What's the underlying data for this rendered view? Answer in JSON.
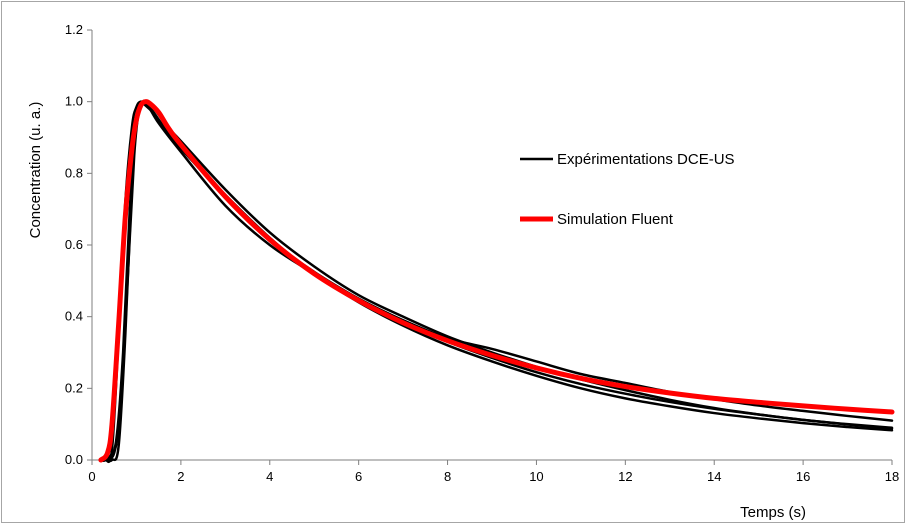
{
  "chart_data": {
    "type": "line",
    "title": "",
    "xlabel": "Temps (s)",
    "ylabel": "Concentration (u. a.)",
    "xlim": [
      0,
      18
    ],
    "ylim": [
      0,
      1.2
    ],
    "xticks": [
      "0",
      "2",
      "4",
      "6",
      "8",
      "10",
      "12",
      "14",
      "16",
      "18"
    ],
    "yticks": [
      "0.0",
      "0.2",
      "0.4",
      "0.6",
      "0.8",
      "1.0",
      "1.2"
    ],
    "grid": false,
    "legend_position": "right",
    "colors": {
      "experiment": "#000000",
      "simulation": "#ff0000",
      "axis": "#7f7f7f"
    },
    "legend": [
      {
        "label": "Expérimentations DCE-US",
        "color": "#000000"
      },
      {
        "label": "Simulation Fluent",
        "color": "#ff0000"
      }
    ],
    "series": [
      {
        "group": "experiment",
        "color": "#000000",
        "width": 2.5,
        "x": [
          0.2,
          0.3,
          0.45,
          0.6,
          0.75,
          0.9,
          1.0,
          1.1,
          1.25,
          1.5,
          2,
          3,
          4,
          5,
          6,
          7,
          8,
          9,
          10,
          11,
          12,
          13,
          14,
          15,
          16,
          17,
          18
        ],
        "y": [
          0,
          0,
          0.03,
          0.35,
          0.72,
          0.93,
          0.985,
          1.0,
          0.99,
          0.94,
          0.86,
          0.71,
          0.6,
          0.52,
          0.45,
          0.39,
          0.34,
          0.31,
          0.275,
          0.24,
          0.215,
          0.19,
          0.17,
          0.152,
          0.137,
          0.123,
          0.11
        ]
      },
      {
        "group": "experiment",
        "color": "#000000",
        "width": 2.5,
        "x": [
          0.25,
          0.4,
          0.55,
          0.7,
          0.85,
          1.0,
          1.12,
          1.22,
          1.4,
          1.7,
          2,
          3,
          4,
          5,
          6,
          7,
          8,
          9,
          10,
          11,
          12,
          13,
          14,
          15,
          16,
          17,
          18
        ],
        "y": [
          0,
          0.01,
          0.06,
          0.3,
          0.7,
          0.94,
          0.995,
          1.0,
          0.98,
          0.93,
          0.89,
          0.755,
          0.635,
          0.54,
          0.46,
          0.4,
          0.345,
          0.3,
          0.26,
          0.225,
          0.195,
          0.168,
          0.145,
          0.127,
          0.112,
          0.099,
          0.088
        ]
      },
      {
        "group": "experiment",
        "color": "#000000",
        "width": 2.5,
        "x": [
          0.3,
          0.45,
          0.6,
          0.75,
          0.9,
          1.0,
          1.1,
          1.2,
          1.4,
          1.7,
          2,
          3,
          4,
          5,
          6,
          7,
          8,
          9,
          10,
          11,
          12,
          13,
          14,
          15,
          16,
          17,
          18
        ],
        "y": [
          0,
          0,
          0.04,
          0.35,
          0.78,
          0.95,
          0.995,
          0.99,
          0.965,
          0.91,
          0.87,
          0.735,
          0.615,
          0.525,
          0.45,
          0.385,
          0.33,
          0.285,
          0.245,
          0.212,
          0.185,
          0.162,
          0.143,
          0.127,
          0.112,
          0.1,
          0.09
        ]
      },
      {
        "group": "experiment",
        "color": "#000000",
        "width": 2.5,
        "x": [
          0.3,
          0.5,
          0.65,
          0.8,
          0.95,
          1.05,
          1.15,
          1.3,
          1.5,
          1.8,
          2,
          3,
          4,
          5,
          6,
          7,
          8,
          9,
          10,
          11,
          12,
          13,
          14,
          15,
          16,
          17,
          18
        ],
        "y": [
          0,
          0.02,
          0.15,
          0.5,
          0.85,
          0.97,
          1.0,
          0.985,
          0.95,
          0.9,
          0.87,
          0.74,
          0.62,
          0.52,
          0.44,
          0.375,
          0.32,
          0.275,
          0.235,
          0.2,
          0.172,
          0.15,
          0.131,
          0.116,
          0.103,
          0.092,
          0.083
        ]
      },
      {
        "name": "Simulation Fluent",
        "group": "simulation",
        "color": "#ff0000",
        "width": 5,
        "x": [
          0.2,
          0.35,
          0.45,
          0.6,
          0.75,
          0.9,
          1.0,
          1.1,
          1.2,
          1.3,
          1.5,
          1.7,
          2,
          3,
          4,
          5,
          6,
          7,
          8,
          9,
          10,
          11,
          12,
          13,
          14,
          15,
          16,
          17,
          18
        ],
        "y": [
          0,
          0.02,
          0.1,
          0.38,
          0.68,
          0.87,
          0.95,
          0.99,
          1.0,
          0.995,
          0.97,
          0.93,
          0.88,
          0.735,
          0.615,
          0.52,
          0.445,
          0.383,
          0.333,
          0.292,
          0.257,
          0.228,
          0.205,
          0.187,
          0.172,
          0.161,
          0.151,
          0.142,
          0.134
        ]
      }
    ]
  }
}
